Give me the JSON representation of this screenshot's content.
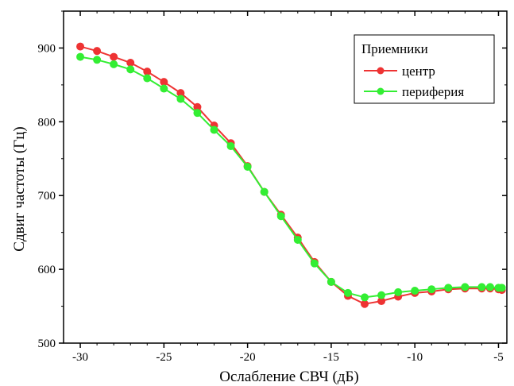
{
  "chart_data": {
    "type": "line",
    "xlabel": "Ослабление СВЧ (дБ)",
    "ylabel": "Сдвиг частоты (Гц)",
    "xlim": [
      -31,
      -4.5
    ],
    "ylim": [
      500,
      950
    ],
    "xticks": [
      -30,
      -25,
      -20,
      -15,
      -10,
      -5
    ],
    "yticks": [
      500,
      600,
      700,
      800,
      900
    ],
    "grid": false,
    "legend": {
      "title": "Приемники",
      "position": "top-right"
    },
    "x": [
      -30,
      -29,
      -28,
      -27,
      -26,
      -25,
      -24,
      -23,
      -22,
      -21,
      -20,
      -19,
      -18,
      -17,
      -16,
      -15,
      -14,
      -13,
      -12,
      -11,
      -10,
      -9,
      -8,
      -7,
      -6,
      -5.5,
      -5,
      -4.8
    ],
    "series": [
      {
        "name": "центр",
        "color": "#ee3333",
        "values": [
          902,
          896,
          888,
          880,
          868,
          854,
          839,
          820,
          795,
          771,
          740,
          705,
          674,
          643,
          610,
          583,
          564,
          553,
          557,
          563,
          568,
          570,
          573,
          574,
          574,
          574,
          573,
          572
        ]
      },
      {
        "name": "периферия",
        "color": "#33ee33",
        "values": [
          888,
          884,
          878,
          871,
          859,
          845,
          831,
          812,
          789,
          767,
          739,
          705,
          672,
          640,
          608,
          583,
          568,
          562,
          565,
          569,
          571,
          573,
          575,
          576,
          576,
          576,
          575,
          575
        ]
      }
    ]
  }
}
